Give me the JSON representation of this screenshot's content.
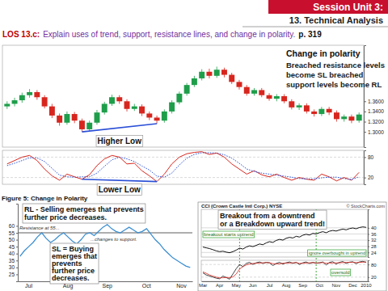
{
  "header": {
    "session": "Session Unit 3:",
    "topic": "13. Technical Analysis"
  },
  "objective": {
    "code": "LOS 13.c:",
    "text": "Explain uses of trend, support, resistance lines, and change in polarity.",
    "page": "p. 319"
  },
  "chart_data": [
    {
      "type": "candlestick",
      "categories": [
        null,
        null,
        null,
        null,
        null,
        null,
        null,
        null,
        null,
        null,
        null,
        null,
        null,
        null,
        null,
        null,
        null,
        null,
        null,
        null,
        null,
        null,
        null,
        null,
        null,
        null,
        null,
        null,
        null,
        null,
        null,
        null,
        null,
        null,
        null,
        null,
        null,
        null,
        null,
        null,
        null,
        null,
        null,
        null,
        null,
        null,
        null,
        null
      ],
      "open": [
        1.35,
        1.355,
        1.362,
        1.372,
        1.378,
        1.368,
        1.35,
        1.332,
        1.318,
        1.335,
        1.322,
        1.305,
        1.318,
        1.338,
        1.355,
        1.368,
        1.36,
        1.345,
        1.35,
        1.336,
        1.328,
        1.322,
        1.34,
        1.358,
        1.375,
        1.392,
        1.405,
        1.418,
        1.41,
        1.422,
        1.412,
        1.398,
        1.388,
        1.375,
        1.382,
        1.372,
        1.365,
        1.37,
        1.36,
        1.348,
        1.352,
        1.34,
        1.335,
        1.345,
        1.338,
        1.325,
        1.33,
        1.322
      ],
      "high": [
        1.36,
        1.367,
        1.377,
        1.384,
        1.382,
        1.372,
        1.355,
        1.336,
        1.34,
        1.339,
        1.326,
        1.322,
        1.343,
        1.359,
        1.373,
        1.372,
        1.364,
        1.355,
        1.354,
        1.34,
        1.332,
        1.344,
        1.362,
        1.379,
        1.396,
        1.41,
        1.423,
        1.424,
        1.428,
        1.426,
        1.416,
        1.402,
        1.392,
        1.386,
        1.386,
        1.376,
        1.374,
        1.374,
        1.364,
        1.356,
        1.356,
        1.344,
        1.349,
        1.349,
        1.342,
        1.334,
        1.334,
        1.338
      ],
      "low": [
        1.345,
        1.35,
        1.357,
        1.367,
        1.363,
        1.346,
        1.327,
        1.312,
        1.314,
        1.317,
        1.3,
        1.301,
        1.314,
        1.334,
        1.351,
        1.355,
        1.34,
        1.341,
        1.331,
        1.323,
        1.316,
        1.318,
        1.336,
        1.354,
        1.371,
        1.388,
        1.401,
        1.405,
        1.406,
        1.407,
        1.394,
        1.383,
        1.371,
        1.371,
        1.368,
        1.361,
        1.36,
        1.356,
        1.344,
        1.343,
        1.336,
        1.33,
        1.331,
        1.333,
        1.32,
        1.32,
        1.317,
        1.318
      ],
      "close": [
        1.355,
        1.362,
        1.372,
        1.378,
        1.368,
        1.35,
        1.332,
        1.318,
        1.335,
        1.322,
        1.305,
        1.318,
        1.338,
        1.355,
        1.368,
        1.36,
        1.345,
        1.35,
        1.336,
        1.328,
        1.322,
        1.34,
        1.358,
        1.375,
        1.392,
        1.405,
        1.418,
        1.41,
        1.422,
        1.412,
        1.398,
        1.388,
        1.375,
        1.382,
        1.372,
        1.365,
        1.37,
        1.36,
        1.348,
        1.352,
        1.34,
        1.335,
        1.345,
        1.338,
        1.325,
        1.33,
        1.322,
        1.334
      ],
      "increasing": {
        "color": "#1e9e4a"
      },
      "decreasing": {
        "color": "#d7261e"
      },
      "ylim": [
        1.27,
        1.47
      ],
      "yticks": [
        {
          "value": 1.3,
          "label": "1.3000"
        },
        {
          "value": 1.32,
          "label": "1.3200"
        },
        {
          "value": 1.34,
          "label": "1.3400"
        },
        {
          "value": 1.36,
          "label": "1.3600"
        }
      ],
      "tick_labels": "y",
      "trendline": {
        "x": [
          10,
          20
        ],
        "y": [
          1.3,
          1.316
        ],
        "label": "Higher Low",
        "color": "#2a4fd6"
      },
      "callout": {
        "title": "Change in polarity",
        "lines": [
          "Breached resistance levels",
          "become SL breached",
          "support levels become RL"
        ]
      }
    },
    {
      "type": "line",
      "ylim": [
        0,
        100
      ],
      "yticks": [
        20,
        80
      ],
      "grid": true,
      "tick_labels": "y",
      "series": [
        {
          "color": "#d7261e",
          "line_style": "solid",
          "values": [
            60,
            70,
            80,
            85,
            70,
            45,
            25,
            12,
            30,
            22,
            15,
            28,
            55,
            75,
            85,
            80,
            60,
            62,
            40,
            25,
            8,
            30,
            60,
            80,
            90,
            94,
            96,
            88,
            92,
            80,
            60,
            45,
            30,
            40,
            28,
            22,
            30,
            20,
            12,
            20,
            15,
            12,
            30,
            22,
            10,
            20,
            12,
            35
          ]
        },
        {
          "color": "#2a4fd6",
          "line_style": "dotted",
          "values": [
            55,
            62,
            70,
            78,
            78,
            67,
            47,
            27,
            22,
            21,
            22,
            22,
            33,
            53,
            72,
            80,
            75,
            67,
            54,
            42,
            24,
            21,
            33,
            57,
            77,
            88,
            93,
            93,
            92,
            87,
            77,
            62,
            45,
            38,
            33,
            30,
            27,
            24,
            21,
            17,
            16,
            16,
            19,
            21,
            21,
            17,
            14,
            22
          ]
        }
      ],
      "trendline": {
        "x": [
          10,
          20
        ],
        "y": [
          15,
          8
        ],
        "label": "Lower Low",
        "color": "#2a4fd6"
      }
    },
    {
      "type": "line",
      "title": "Figure 5: Change in Polarity",
      "categories": [
        null,
        null,
        "Jul",
        null,
        null,
        null,
        null,
        null,
        null,
        null,
        null,
        "Aug",
        null,
        null,
        null,
        null,
        null,
        null,
        null,
        null,
        "Sep",
        null,
        null,
        null,
        null,
        null,
        null,
        null,
        null,
        "Oct",
        null,
        null,
        null,
        null,
        null,
        null,
        null,
        "Nov",
        null,
        null
      ],
      "values": [
        38,
        42,
        45,
        48,
        52,
        55,
        51,
        48,
        50,
        53,
        55,
        52,
        49,
        47,
        50,
        54,
        55,
        53,
        56,
        59,
        61,
        58,
        56,
        55,
        57,
        59,
        57,
        55,
        56,
        58,
        54,
        50,
        47,
        43,
        40,
        37,
        35,
        33,
        31,
        30
      ],
      "color": "#3d8fd1",
      "ylim": [
        20,
        76
      ],
      "yticks": [
        25,
        30,
        35,
        40,
        45,
        50,
        55,
        60
      ],
      "level": 55,
      "level_labels": [
        "Resistance at 55...",
        "...changes to support."
      ],
      "notes": [
        {
          "lines": [
            "RL - Selling emerges that prevents",
            "further price decreases."
          ]
        },
        {
          "lines": [
            "SL = Buying",
            "emerges that",
            "prevents",
            "further price",
            "decreases."
          ]
        }
      ]
    },
    {
      "type": "line",
      "title": "CCI (Crown Castle Intl Corp.) NYSE",
      "source": "© StockCharts.com",
      "categories": [
        "Mar",
        null,
        null,
        null,
        null,
        "Apr",
        null,
        null,
        null,
        null,
        "May",
        null,
        null,
        null,
        null,
        "Jun",
        null,
        null,
        null,
        null,
        "Jul",
        null,
        null,
        null,
        null,
        "Aug",
        null,
        null,
        null,
        null,
        "Sep",
        null,
        null,
        null,
        null,
        "Oct",
        null,
        null,
        null,
        null,
        "Nov",
        null,
        null,
        null,
        null,
        "Dec",
        null,
        null,
        null,
        "2010"
      ],
      "values": [
        27.5,
        27,
        26.5,
        25.8,
        25,
        24.5,
        24.8,
        24.2,
        23.8,
        24.5,
        25.5,
        26.8,
        26.2,
        27.5,
        28.3,
        27.8,
        28.6,
        29.5,
        29,
        30.2,
        31,
        30.5,
        31.8,
        32.5,
        32,
        33.2,
        33.8,
        33.4,
        34.5,
        34,
        35.2,
        35.8,
        35.3,
        36.4,
        36,
        36.9,
        37.5,
        36.8,
        37.8,
        38.3,
        37.9,
        38.6,
        39.2,
        38.7,
        39.5,
        39.9,
        39.4,
        40.2,
        40.6,
        40.3
      ],
      "color": "#111111",
      "ylim": [
        21,
        52
      ],
      "yticks": [
        24,
        28,
        32,
        36,
        40
      ],
      "grid": true,
      "event_lines": [
        11,
        34
      ],
      "annotations": [
        "breakout starts uptrend",
        "ignore overbought in uptrend"
      ],
      "callout": {
        "lines": [
          "Breakout from a downtrend",
          "or a Breakdown upward trend!"
        ]
      }
    },
    {
      "type": "line",
      "ylim": [
        0,
        100
      ],
      "yticks": [
        20,
        80
      ],
      "grid": true,
      "series": [
        {
          "color": "#111111",
          "values": [
            40,
            30,
            25,
            20,
            15,
            12,
            25,
            18,
            10,
            35,
            60,
            80,
            70,
            85,
            90,
            80,
            88,
            92,
            85,
            90,
            88,
            75,
            85,
            90,
            82,
            88,
            92,
            85,
            90,
            80,
            88,
            92,
            84,
            90,
            86,
            88,
            92,
            78,
            90,
            93,
            82,
            90,
            94,
            85,
            91,
            93,
            84,
            92,
            95,
            90
          ]
        },
        {
          "color": "#d7261e",
          "values": [
            45,
            38,
            30,
            25,
            20,
            16,
            17,
            18,
            18,
            21,
            35,
            58,
            70,
            78,
            82,
            85,
            86,
            87,
            88,
            89,
            88,
            84,
            83,
            83,
            86,
            87,
            87,
            88,
            89,
            85,
            86,
            87,
            88,
            89,
            87,
            88,
            89,
            86,
            87,
            87,
            88,
            88,
            89,
            90,
            90,
            90,
            89,
            90,
            91,
            92
          ]
        }
      ],
      "annotations": [
        "oversold"
      ]
    }
  ]
}
